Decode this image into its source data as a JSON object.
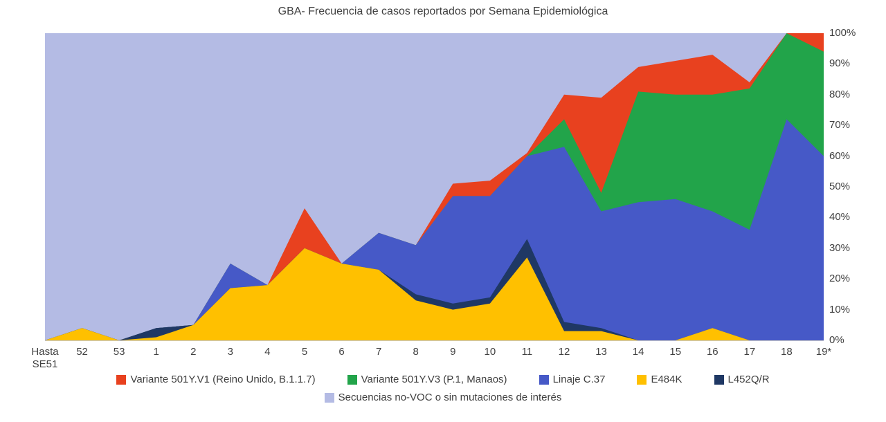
{
  "title": "GBA- Frecuencia de casos reportados por Semana Epidemiológica",
  "chart_data": {
    "type": "area",
    "stacking": "percent",
    "title": "GBA- Frecuencia de casos reportados por Semana Epidemiológica",
    "xlabel": "",
    "ylabel": "",
    "ylim": [
      0,
      100
    ],
    "y_axis_side": "right",
    "grid": false,
    "legend_position": "bottom",
    "y_ticks": [
      "0%",
      "10%",
      "20%",
      "30%",
      "40%",
      "50%",
      "60%",
      "70%",
      "80%",
      "90%",
      "100%"
    ],
    "categories": [
      "Hasta\nSE51",
      "52",
      "53",
      "1",
      "2",
      "3",
      "4",
      "5",
      "6",
      "7",
      "8",
      "9",
      "10",
      "11",
      "12",
      "13",
      "14",
      "15",
      "16",
      "17",
      "18",
      "19*"
    ],
    "stack_order_bottom_to_top": [
      "E484K",
      "L452Q/R",
      "Linaje C.37",
      "Variante 501Y.V3 (P.1, Manaos)",
      "Variante 501Y.V1 (Reino Unido, B.1.1.7)"
    ],
    "background_series": "Secuencias no-VOC o sin mutaciones de interés",
    "series": [
      {
        "name": "Variante 501Y.V1 (Reino Unido, B.1.1.7)",
        "color": "#e8411f",
        "values": [
          0,
          0,
          0,
          0,
          0,
          0,
          0,
          13,
          0,
          0,
          0,
          4,
          5,
          1,
          8,
          31,
          8,
          11,
          13,
          2,
          0,
          6
        ]
      },
      {
        "name": "Variante 501Y.V3 (P.1, Manaos)",
        "color": "#22a44a",
        "values": [
          0,
          0,
          0,
          0,
          0,
          0,
          0,
          0,
          0,
          0,
          0,
          0,
          0,
          0,
          9,
          6,
          36,
          34,
          38,
          46,
          28,
          34
        ]
      },
      {
        "name": "Linaje C.37",
        "color": "#4659c7",
        "values": [
          0,
          0,
          0,
          0,
          0,
          8,
          0,
          0,
          0,
          12,
          16,
          35,
          33,
          27,
          57,
          38,
          45,
          46,
          38,
          36,
          72,
          60
        ]
      },
      {
        "name": "E484K",
        "color": "#ffc000",
        "values": [
          0,
          4,
          0,
          1,
          5,
          17,
          18,
          30,
          25,
          23,
          13,
          10,
          12,
          27,
          3,
          3,
          0,
          0,
          4,
          0,
          0,
          0
        ]
      },
      {
        "name": "L452Q/R",
        "color": "#1f3864",
        "values": [
          0,
          0,
          0,
          3,
          0,
          0,
          0,
          0,
          0,
          0,
          2,
          2,
          2,
          6,
          3,
          1,
          0,
          0,
          0,
          0,
          0,
          0
        ]
      },
      {
        "name": "Secuencias no-VOC o sin mutaciones de interés",
        "color": "#b4bbe4",
        "values": [
          100,
          96,
          100,
          96,
          95,
          75,
          82,
          57,
          75,
          65,
          69,
          49,
          48,
          39,
          20,
          21,
          11,
          9,
          7,
          16,
          0,
          0
        ]
      }
    ]
  }
}
